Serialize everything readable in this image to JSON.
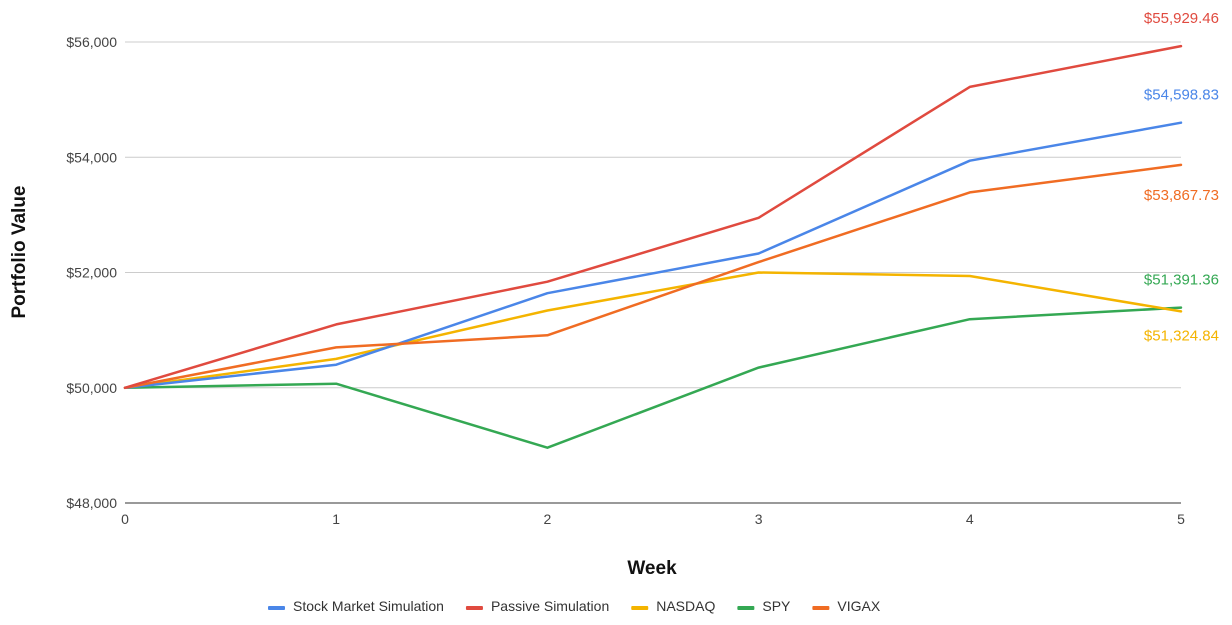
{
  "chart_data": {
    "type": "line",
    "title": "",
    "xlabel": "Week",
    "ylabel": "Portfolio Value",
    "x": [
      0,
      1,
      2,
      3,
      4,
      5
    ],
    "x_tick_labels": [
      "0",
      "1",
      "2",
      "3",
      "4",
      "5"
    ],
    "ylim": [
      48000,
      56000
    ],
    "y_ticks": [
      48000,
      50000,
      52000,
      54000,
      56000
    ],
    "y_tick_labels": [
      "$48,000",
      "$50,000",
      "$52,000",
      "$54,000",
      "$56,000"
    ],
    "grid": true,
    "legend_position": "bottom",
    "series": [
      {
        "name": "Stock Market Simulation",
        "color": "#4a86e8",
        "values": [
          50000,
          50400,
          51640,
          52330,
          53940,
          54598.83
        ],
        "end_label": "$54,598.83"
      },
      {
        "name": "Passive Simulation",
        "color": "#e04a3f",
        "values": [
          50000,
          51100,
          51840,
          52950,
          55220,
          55929.46
        ],
        "end_label": "$55,929.46"
      },
      {
        "name": "NASDAQ",
        "color": "#f4b400",
        "values": [
          50000,
          50500,
          51340,
          52000,
          51940,
          51324.84
        ],
        "end_label": "$51,324.84"
      },
      {
        "name": "SPY",
        "color": "#34a853",
        "values": [
          50000,
          50070,
          48960,
          50350,
          51190,
          51391.36
        ],
        "end_label": "$51,391.36"
      },
      {
        "name": "VIGAX",
        "color": "#f06c23",
        "values": [
          50000,
          50700,
          50910,
          52180,
          53390,
          53867.73
        ],
        "end_label": "$53,867.73"
      }
    ]
  }
}
